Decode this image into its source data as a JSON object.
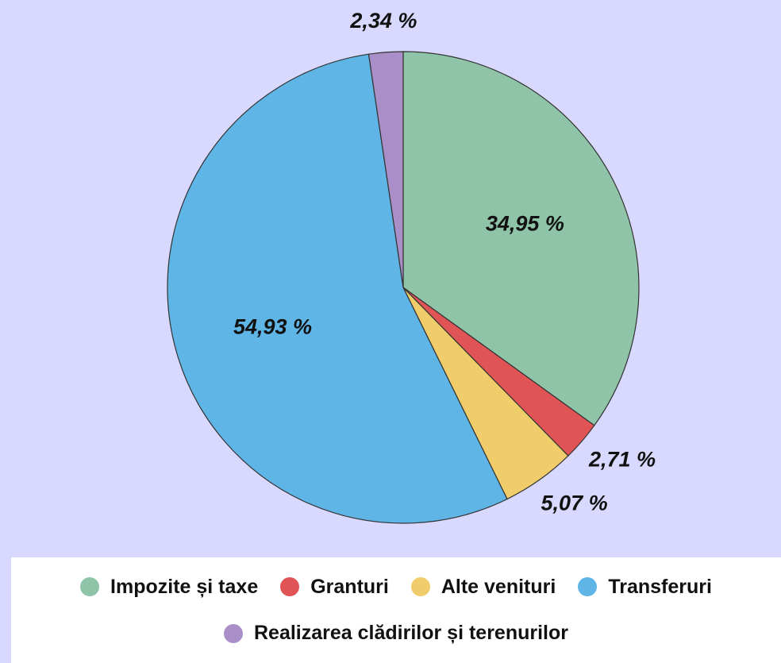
{
  "chart_data": {
    "type": "pie",
    "categories": [
      "Impozite și taxe",
      "Granturi",
      "Alte venituri",
      "Transferuri",
      "Realizarea clădirilor și terenurilor"
    ],
    "values": [
      34.95,
      2.71,
      5.07,
      54.93,
      2.34
    ],
    "value_labels": [
      "34,95 %",
      "2,71 %",
      "5,07 %",
      "54,93 %",
      "2,34 %"
    ],
    "colors": [
      "#8fc4a8",
      "#e05456",
      "#f0cd6a",
      "#5fb6e6",
      "#a98ec8"
    ],
    "legend": "bottom"
  }
}
